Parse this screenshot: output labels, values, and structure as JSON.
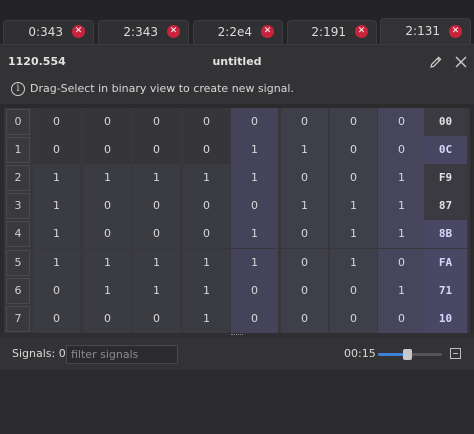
{
  "tabs": [
    {
      "label": "0:343",
      "active": false
    },
    {
      "label": "2:343",
      "active": false
    },
    {
      "label": "2:2e4",
      "active": false
    },
    {
      "label": "2:191",
      "active": false
    },
    {
      "label": "2:131",
      "active": true
    }
  ],
  "header": {
    "value": "1120.554",
    "title": "untitled"
  },
  "info": {
    "text": "Drag-Select in binary view to create new signal."
  },
  "grid": {
    "rows": [
      {
        "label": "0",
        "bits": [
          "0",
          "0",
          "0",
          "0",
          "0",
          "0",
          "0",
          "0"
        ],
        "hex": "00"
      },
      {
        "label": "1",
        "bits": [
          "0",
          "0",
          "0",
          "0",
          "1",
          "1",
          "0",
          "0"
        ],
        "hex": "0C"
      },
      {
        "label": "2",
        "bits": [
          "1",
          "1",
          "1",
          "1",
          "1",
          "0",
          "0",
          "1"
        ],
        "hex": "F9"
      },
      {
        "label": "3",
        "bits": [
          "1",
          "0",
          "0",
          "0",
          "0",
          "1",
          "1",
          "1"
        ],
        "hex": "87"
      },
      {
        "label": "4",
        "bits": [
          "1",
          "0",
          "0",
          "0",
          "1",
          "0",
          "1",
          "1"
        ],
        "hex": "8B"
      },
      {
        "label": "5",
        "bits": [
          "1",
          "1",
          "1",
          "1",
          "1",
          "0",
          "1",
          "0"
        ],
        "hex": "FA"
      },
      {
        "label": "6",
        "bits": [
          "0",
          "1",
          "1",
          "1",
          "0",
          "0",
          "0",
          "1"
        ],
        "hex": "71"
      },
      {
        "label": "7",
        "bits": [
          "0",
          "0",
          "0",
          "1",
          "0",
          "0",
          "0",
          "0"
        ],
        "hex": "10"
      }
    ]
  },
  "bottom": {
    "signals_label": "Signals: 0",
    "filter_placeholder": "filter signals",
    "filter_value": "",
    "time": "00:15",
    "zoom_fraction": 0.45
  },
  "colors": {
    "close_badge": "#c8233c",
    "accent": "#3d7fd6"
  }
}
